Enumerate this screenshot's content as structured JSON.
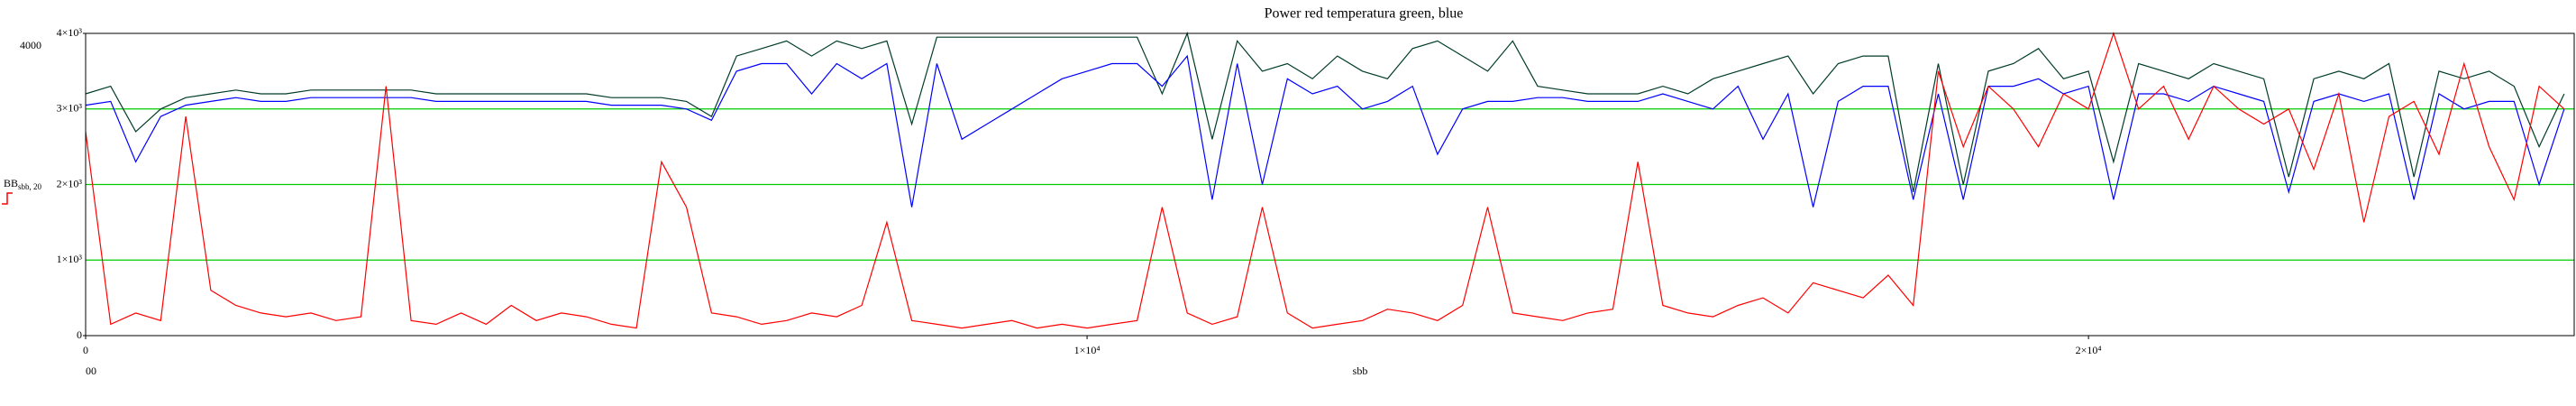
{
  "chart_data": {
    "type": "line",
    "title": "Power red  temperatura green, blue",
    "x_label": "sbb",
    "y_label": "BB",
    "y_label_sub": "sbb, 20",
    "annotations": [
      "4000",
      "00"
    ],
    "x": [
      0,
      250,
      500,
      750,
      1000,
      1250,
      1500,
      1750,
      2000,
      2250,
      2500,
      2750,
      3000,
      3250,
      3500,
      3750,
      4000,
      4250,
      4500,
      4750,
      5000,
      5250,
      5500,
      5750,
      6000,
      6250,
      6500,
      6750,
      7000,
      7250,
      7500,
      7750,
      8000,
      8250,
      8500,
      8750,
      9000,
      9250,
      9500,
      9750,
      10000,
      10250,
      10500,
      10750,
      11000,
      11250,
      11500,
      11750,
      12000,
      12250,
      12500,
      12750,
      13000,
      13250,
      13500,
      13750,
      14000,
      14250,
      14500,
      14750,
      15000,
      15250,
      15500,
      15750,
      16000,
      16250,
      16500,
      16750,
      17000,
      17250,
      17500,
      17750,
      18000,
      18250,
      18500,
      18750,
      19000,
      19250,
      19500,
      19750,
      20000,
      20250,
      20500,
      20750,
      21000,
      21250,
      21500,
      21750,
      22000,
      22250,
      22500,
      22750,
      23000,
      23250,
      23500,
      23750,
      24000,
      24250,
      24500,
      24750
    ],
    "series": [
      {
        "name": "temperatura green",
        "color": "#003c28",
        "values": [
          3200,
          3300,
          2700,
          3000,
          3150,
          3200,
          3250,
          3200,
          3200,
          3250,
          3250,
          3250,
          3250,
          3250,
          3200,
          3200,
          3200,
          3200,
          3200,
          3200,
          3200,
          3150,
          3150,
          3150,
          3100,
          2900,
          3700,
          3800,
          3900,
          3700,
          3900,
          3800,
          3900,
          2800,
          3950,
          3950,
          3950,
          3950,
          3950,
          3950,
          3950,
          3950,
          3950,
          3200,
          4000,
          2600,
          3900,
          3500,
          3600,
          3400,
          3700,
          3500,
          3400,
          3800,
          3900,
          3700,
          3500,
          3900,
          3300,
          3250,
          3200,
          3200,
          3200,
          3300,
          3200,
          3400,
          3500,
          3600,
          3700,
          3200,
          3600,
          3700,
          3700,
          1900,
          3600,
          2000,
          3500,
          3600,
          3800,
          3400,
          3500,
          2300,
          3600,
          3500,
          3400,
          3600,
          3500,
          3400,
          2100,
          3400,
          3500,
          3400,
          3600,
          2100,
          3500,
          3400,
          3500,
          3300,
          2500,
          3200
        ]
      },
      {
        "name": "blue",
        "color": "#0000ff",
        "values": [
          3050,
          3100,
          2300,
          2900,
          3050,
          3100,
          3150,
          3100,
          3100,
          3150,
          3150,
          3150,
          3150,
          3150,
          3100,
          3100,
          3100,
          3100,
          3100,
          3100,
          3100,
          3050,
          3050,
          3050,
          3000,
          2850,
          3500,
          3600,
          3600,
          3200,
          3600,
          3400,
          3600,
          1700,
          3600,
          2600,
          2800,
          3000,
          3200,
          3400,
          3500,
          3600,
          3600,
          3300,
          3700,
          1800,
          3600,
          2000,
          3400,
          3200,
          3300,
          3000,
          3100,
          3300,
          2400,
          3000,
          3100,
          3100,
          3150,
          3150,
          3100,
          3100,
          3100,
          3200,
          3100,
          3000,
          3300,
          2600,
          3200,
          1700,
          3100,
          3300,
          3300,
          1800,
          3200,
          1800,
          3300,
          3300,
          3400,
          3200,
          3300,
          1800,
          3200,
          3200,
          3100,
          3300,
          3200,
          3100,
          1900,
          3100,
          3200,
          3100,
          3200,
          1800,
          3200,
          3000,
          3100,
          3100,
          2000,
          3000
        ]
      },
      {
        "name": "Power red",
        "color": "#ff0000",
        "values": [
          2700,
          150,
          300,
          200,
          2900,
          600,
          400,
          300,
          250,
          300,
          200,
          250,
          3300,
          200,
          150,
          300,
          150,
          400,
          200,
          300,
          250,
          150,
          100,
          2300,
          1700,
          300,
          250,
          150,
          200,
          300,
          250,
          400,
          1500,
          200,
          150,
          100,
          150,
          200,
          100,
          150,
          100,
          150,
          200,
          1700,
          300,
          150,
          250,
          1700,
          300,
          100,
          150,
          200,
          350,
          300,
          200,
          400,
          1700,
          300,
          250,
          200,
          300,
          350,
          2300,
          400,
          300,
          250,
          400,
          500,
          300,
          700,
          600,
          500,
          800,
          400,
          3500,
          2500,
          3300,
          3000,
          2500,
          3200,
          3000,
          4000,
          3000,
          3300,
          2600,
          3300,
          3000,
          2800,
          3000,
          2200,
          3200,
          1500,
          2900,
          3100,
          2400,
          3600,
          2500,
          1800,
          3300,
          3000
        ]
      }
    ],
    "xlim": [
      0,
      24850
    ],
    "ylim": [
      0,
      4000
    ],
    "xticks": [
      0,
      {
        "value": 10000,
        "label": "1×10⁴"
      },
      {
        "value": 20000,
        "label": "2×10⁴"
      }
    ],
    "yticks": [
      0,
      {
        "value": 1000,
        "label": "1×10³"
      },
      {
        "value": 2000,
        "label": "2×10³"
      },
      {
        "value": 3000,
        "label": "3×10³"
      },
      {
        "value": 4000,
        "label": "4×10³"
      }
    ],
    "grid": true,
    "grid_color": "#00cc00"
  }
}
